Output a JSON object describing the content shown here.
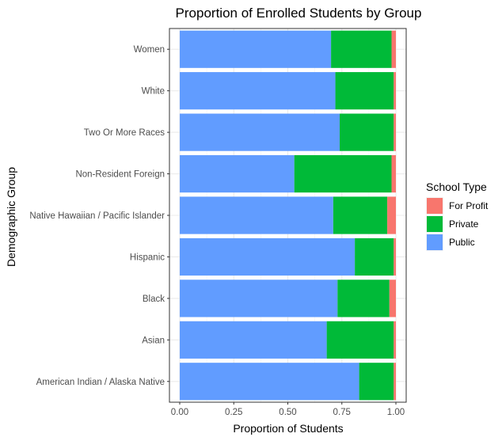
{
  "chart_data": {
    "type": "bar",
    "orientation": "horizontal",
    "stacked": true,
    "title": "Proportion of Enrolled Students by Group",
    "xlabel": "Proportion of Students",
    "ylabel": "Demographic Group",
    "xlim": [
      0,
      1
    ],
    "x_ticks": [
      "0.00",
      "0.25",
      "0.50",
      "0.75",
      "1.00"
    ],
    "x_tick_values": [
      0,
      0.25,
      0.5,
      0.75,
      1
    ],
    "grid": true,
    "legend_position": "right",
    "legend_title": "School Type",
    "categories": [
      "Women",
      "White",
      "Two Or More Races",
      "Non-Resident Foreign",
      "Native Hawaiian / Pacific Islander",
      "Hispanic",
      "Black",
      "Asian",
      "American Indian / Alaska Native"
    ],
    "series": [
      {
        "name": "Public",
        "color": "#619CFF",
        "values": [
          0.7,
          0.72,
          0.74,
          0.53,
          0.71,
          0.81,
          0.73,
          0.68,
          0.83
        ]
      },
      {
        "name": "Private",
        "color": "#00BA38",
        "values": [
          0.28,
          0.27,
          0.25,
          0.45,
          0.25,
          0.18,
          0.24,
          0.31,
          0.16
        ]
      },
      {
        "name": "For Profit",
        "color": "#F8766D",
        "values": [
          0.02,
          0.01,
          0.01,
          0.02,
          0.04,
          0.01,
          0.03,
          0.01,
          0.01
        ]
      }
    ],
    "legend_order": [
      "For Profit",
      "Private",
      "Public"
    ]
  }
}
